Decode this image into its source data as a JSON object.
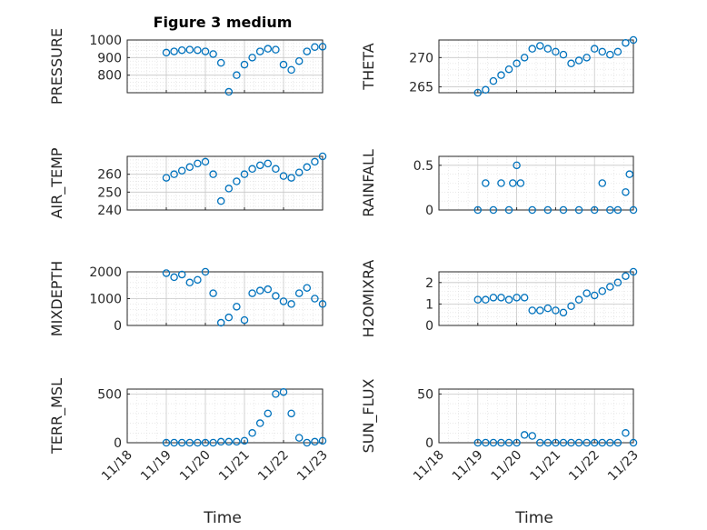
{
  "figure_title": "Figure 3 medium",
  "colors": {
    "marker": "#0072bd",
    "axes": "#262626",
    "grid": "#c8c8c8"
  },
  "chart_data": [
    {
      "type": "scatter",
      "ylabel": "PRESSURE",
      "ylim": [
        700,
        1000
      ],
      "yticks": [
        800,
        900,
        1000
      ],
      "xlim": [
        0,
        5
      ],
      "grid": true,
      "series": [
        {
          "x": [
            1.0,
            1.2,
            1.4,
            1.6,
            1.8,
            2.0,
            2.2,
            2.4,
            2.6,
            2.8,
            3.0,
            3.2,
            3.4,
            3.6,
            3.8,
            4.0,
            4.2,
            4.4,
            4.6,
            4.8,
            5.0
          ],
          "y": [
            928,
            935,
            942,
            945,
            942,
            935,
            920,
            870,
            705,
            800,
            860,
            900,
            935,
            950,
            945,
            860,
            830,
            880,
            935,
            960,
            962
          ]
        }
      ]
    },
    {
      "type": "scatter",
      "ylabel": "THETA",
      "ylim": [
        264,
        273
      ],
      "yticks": [
        265,
        270
      ],
      "xlim": [
        0,
        5
      ],
      "grid": true,
      "series": [
        {
          "x": [
            1.0,
            1.2,
            1.4,
            1.6,
            1.8,
            2.0,
            2.2,
            2.4,
            2.6,
            2.8,
            3.0,
            3.2,
            3.4,
            3.6,
            3.8,
            4.0,
            4.2,
            4.4,
            4.6,
            4.8,
            5.0
          ],
          "y": [
            264,
            264.5,
            266,
            267,
            268,
            269,
            270,
            271.5,
            272,
            271.5,
            271,
            270.5,
            269,
            269.5,
            270,
            271.5,
            271,
            270.5,
            271,
            272.5,
            273
          ]
        }
      ]
    },
    {
      "type": "scatter",
      "ylabel": "AIR_TEMP",
      "ylim": [
        240,
        270
      ],
      "yticks": [
        240,
        250,
        260
      ],
      "xlim": [
        0,
        5
      ],
      "grid": true,
      "series": [
        {
          "x": [
            1.0,
            1.2,
            1.4,
            1.6,
            1.8,
            2.0,
            2.2,
            2.4,
            2.6,
            2.8,
            3.0,
            3.2,
            3.4,
            3.6,
            3.8,
            4.0,
            4.2,
            4.4,
            4.6,
            4.8,
            5.0
          ],
          "y": [
            258,
            260,
            262,
            264,
            266,
            267,
            260,
            245,
            252,
            256,
            260,
            263,
            265,
            266,
            263,
            259,
            258,
            261,
            264,
            267,
            270
          ]
        }
      ]
    },
    {
      "type": "scatter",
      "ylabel": "RAINFALL",
      "ylim": [
        0,
        0.6
      ],
      "yticks": [
        0,
        0.5
      ],
      "xlim": [
        0,
        5
      ],
      "grid": true,
      "series": [
        {
          "x": [
            1.0,
            1.2,
            1.4,
            1.6,
            1.8,
            1.9,
            2.0,
            2.1,
            2.4,
            2.8,
            3.2,
            3.6,
            4.0,
            4.2,
            4.4,
            4.6,
            4.8,
            4.9,
            5.0
          ],
          "y": [
            0,
            0.3,
            0,
            0.3,
            0,
            0.3,
            0.5,
            0.3,
            0,
            0,
            0,
            0,
            0,
            0.3,
            0,
            0,
            0.2,
            0.4,
            0
          ]
        }
      ]
    },
    {
      "type": "scatter",
      "ylabel": "MIXDEPTH",
      "ylim": [
        0,
        2000
      ],
      "yticks": [
        0,
        1000,
        2000
      ],
      "xlim": [
        0,
        5
      ],
      "grid": true,
      "series": [
        {
          "x": [
            1.0,
            1.2,
            1.4,
            1.6,
            1.8,
            2.0,
            2.2,
            2.4,
            2.6,
            2.8,
            3.0,
            3.2,
            3.4,
            3.6,
            3.8,
            4.0,
            4.2,
            4.4,
            4.6,
            4.8,
            5.0
          ],
          "y": [
            1950,
            1800,
            1900,
            1600,
            1700,
            2000,
            1200,
            100,
            300,
            700,
            200,
            1200,
            1300,
            1350,
            1100,
            900,
            800,
            1200,
            1400,
            1000,
            800
          ]
        }
      ]
    },
    {
      "type": "scatter",
      "ylabel": "H2OMIXRA",
      "ylim": [
        0,
        2.5
      ],
      "yticks": [
        0,
        1,
        2
      ],
      "xlim": [
        0,
        5
      ],
      "grid": true,
      "series": [
        {
          "x": [
            1.0,
            1.2,
            1.4,
            1.6,
            1.8,
            2.0,
            2.2,
            2.4,
            2.6,
            2.8,
            3.0,
            3.2,
            3.4,
            3.6,
            3.8,
            4.0,
            4.2,
            4.4,
            4.6,
            4.8,
            5.0
          ],
          "y": [
            1.2,
            1.2,
            1.3,
            1.3,
            1.2,
            1.3,
            1.3,
            0.7,
            0.7,
            0.8,
            0.7,
            0.6,
            0.9,
            1.2,
            1.5,
            1.4,
            1.6,
            1.8,
            2.0,
            2.3,
            2.5
          ]
        }
      ]
    },
    {
      "type": "scatter",
      "ylabel": "TERR_MSL",
      "ylim": [
        0,
        550
      ],
      "yticks": [
        0,
        500
      ],
      "xlim": [
        0,
        5
      ],
      "grid": true,
      "series": [
        {
          "x": [
            1.0,
            1.2,
            1.4,
            1.6,
            1.8,
            2.0,
            2.2,
            2.4,
            2.6,
            2.8,
            3.0,
            3.2,
            3.4,
            3.6,
            3.8,
            4.0,
            4.2,
            4.4,
            4.6,
            4.8,
            5.0
          ],
          "y": [
            0,
            0,
            0,
            0,
            0,
            0,
            0,
            10,
            10,
            10,
            20,
            100,
            200,
            300,
            500,
            520,
            300,
            50,
            0,
            10,
            20
          ]
        }
      ]
    },
    {
      "type": "scatter",
      "ylabel": "SUN_FLUX",
      "ylim": [
        0,
        55
      ],
      "yticks": [
        0,
        50
      ],
      "xlim": [
        0,
        5
      ],
      "grid": true,
      "xticklabels": [
        "11/18",
        "11/19",
        "11/20",
        "11/21",
        "11/22",
        "11/23"
      ],
      "series": [
        {
          "x": [
            1.0,
            1.2,
            1.4,
            1.6,
            1.8,
            2.0,
            2.2,
            2.4,
            2.6,
            2.8,
            3.0,
            3.2,
            3.4,
            3.6,
            3.8,
            4.0,
            4.2,
            4.4,
            4.6,
            4.8,
            5.0
          ],
          "y": [
            0,
            0,
            0,
            0,
            0,
            0,
            8,
            7,
            0,
            0,
            0,
            0,
            0,
            0,
            0,
            0,
            0,
            0,
            0,
            10,
            0
          ]
        }
      ]
    }
  ],
  "xtick_labels": [
    "11/18",
    "11/19",
    "11/20",
    "11/21",
    "11/22",
    "11/23"
  ],
  "xlabel": "Time"
}
